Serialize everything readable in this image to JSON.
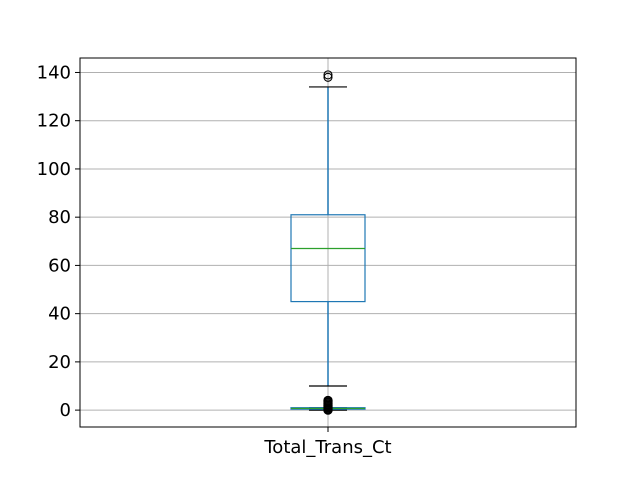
{
  "chart_data": {
    "type": "box",
    "categories": [
      "Total_Trans_Ct"
    ],
    "ylim": [
      -7,
      146
    ],
    "y_ticks": [
      0,
      20,
      40,
      60,
      80,
      100,
      120,
      140
    ],
    "grid": true,
    "series": [
      {
        "category": "Total_Trans_Ct",
        "whisker_low": 10,
        "q1": 45,
        "median": 67,
        "q3": 81,
        "whisker_high": 134,
        "outliers": [
          138,
          139
        ]
      },
      {
        "category": "Total_Trans_Ct",
        "whisker_low": 0,
        "q1": 0.4,
        "median": 0.7,
        "q3": 1,
        "whisker_high": 1,
        "outliers": [
          0,
          1,
          2,
          3,
          4
        ]
      }
    ],
    "colors": {
      "box": "#1f77b4",
      "median": "#2ca02c",
      "whisker_cap": "#000000",
      "grid": "#b0b0b0",
      "frame": "#000000"
    }
  }
}
